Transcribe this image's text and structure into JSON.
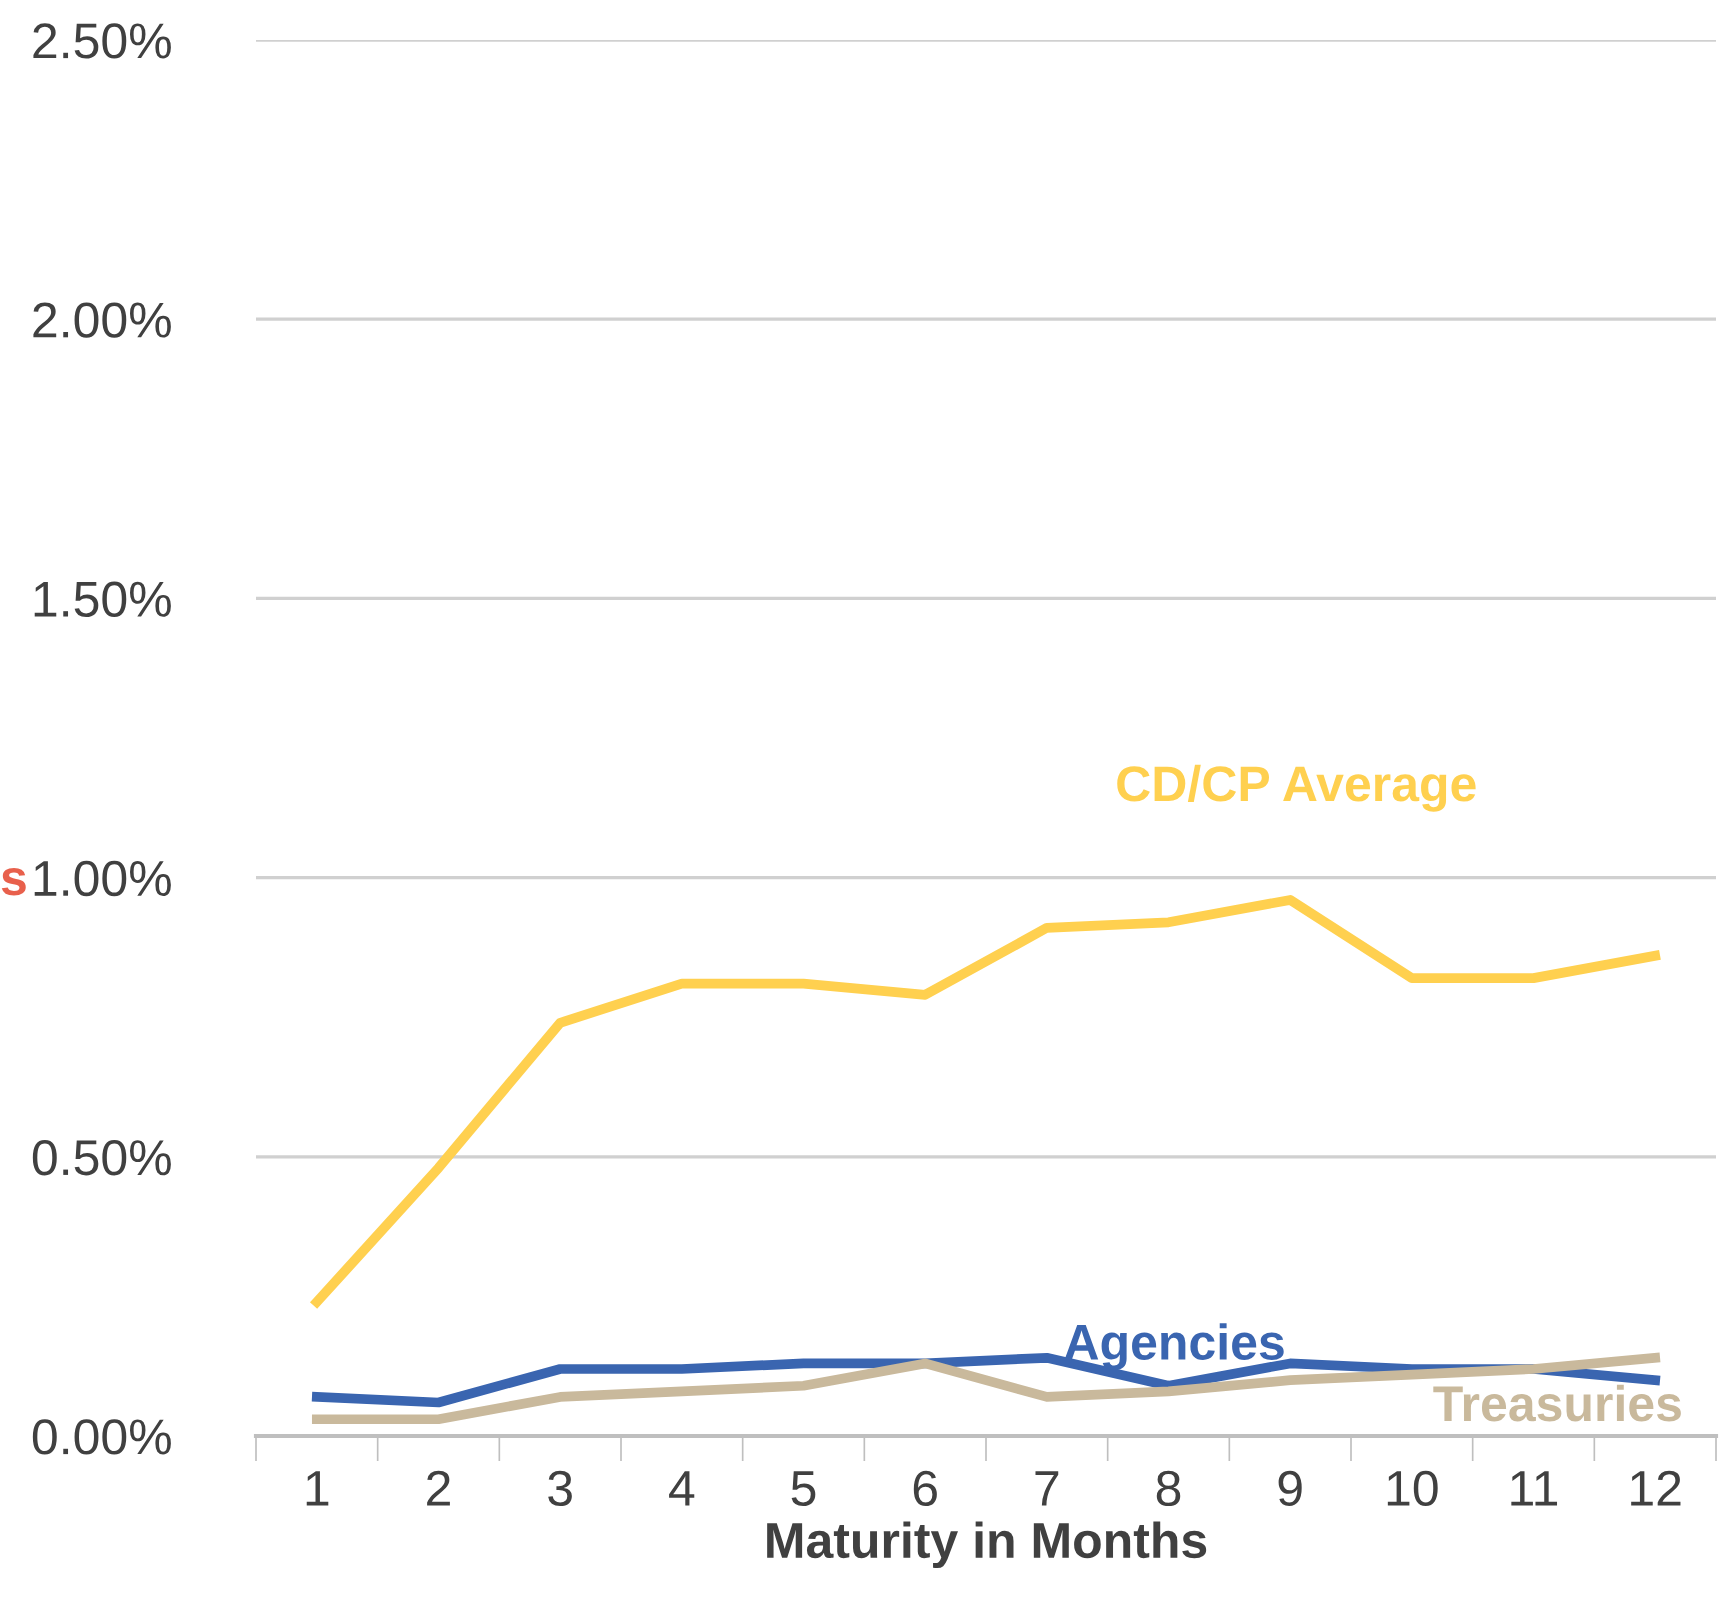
{
  "chart_data": {
    "type": "line",
    "xlabel": "Maturity in Months",
    "ylabel": "s",
    "categories": [
      "1",
      "2",
      "3",
      "4",
      "5",
      "6",
      "7",
      "8",
      "9",
      "10",
      "11",
      "12"
    ],
    "series": [
      {
        "name": "CD/CP Average",
        "color": "#ffd04f",
        "values": [
          0.24,
          0.48,
          0.74,
          0.81,
          0.81,
          0.79,
          0.91,
          0.92,
          0.96,
          0.82,
          0.82,
          0.86
        ]
      },
      {
        "name": "Agencies",
        "color": "#3a65b0",
        "values": [
          0.07,
          0.06,
          0.12,
          0.12,
          0.13,
          0.13,
          0.14,
          0.09,
          0.13,
          0.12,
          0.12,
          0.1
        ]
      },
      {
        "name": "Treasuries",
        "color": "#c9b99c",
        "values": [
          0.03,
          0.03,
          0.07,
          0.08,
          0.09,
          0.13,
          0.07,
          0.08,
          0.1,
          0.11,
          0.12,
          0.14
        ]
      }
    ],
    "ylim": [
      0,
      2.5
    ],
    "yticks": [
      {
        "value": 0,
        "label": "0.00%"
      },
      {
        "value": 0.5,
        "label": "0.50%"
      },
      {
        "value": 1.0,
        "label": "1.00%"
      },
      {
        "value": 1.5,
        "label": "1.50%"
      },
      {
        "value": 2.0,
        "label": "2.00%"
      },
      {
        "value": 2.5,
        "label": "2.50%"
      }
    ],
    "grid": "y",
    "marker": "none",
    "line_style": "solid"
  }
}
